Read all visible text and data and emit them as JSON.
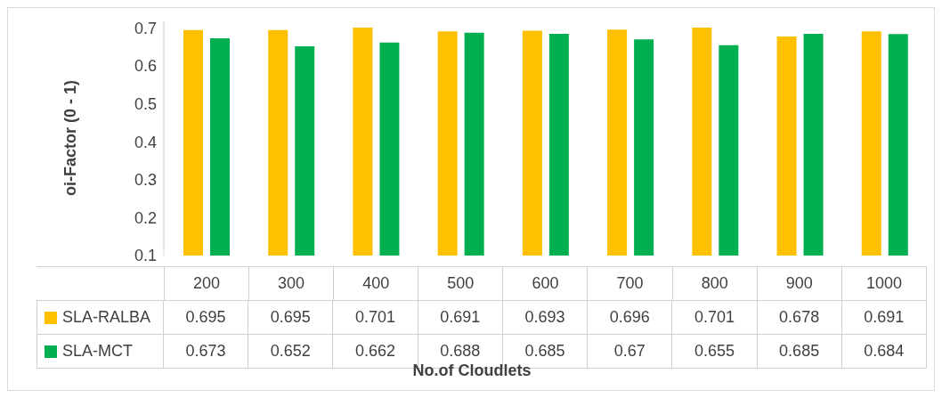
{
  "chart_data": {
    "type": "bar",
    "xlabel": "No.of Cloudlets",
    "ylabel": "oi-Factor (0 - 1)",
    "categories": [
      "200",
      "300",
      "400",
      "500",
      "600",
      "700",
      "800",
      "900",
      "1000"
    ],
    "series": [
      {
        "name": "SLA-RALBA",
        "color": "#ffc000",
        "values": [
          0.695,
          0.695,
          0.701,
          0.691,
          0.693,
          0.696,
          0.701,
          0.678,
          0.691
        ]
      },
      {
        "name": "SLA-MCT",
        "color": "#00b050",
        "values": [
          0.673,
          0.652,
          0.662,
          0.688,
          0.685,
          0.67,
          0.655,
          0.685,
          0.684
        ]
      }
    ],
    "ylim": [
      0.1,
      0.72
    ],
    "yticks": [
      0.1,
      0.2,
      0.3,
      0.4,
      0.5,
      0.6,
      0.7
    ],
    "grid": false,
    "legend": "bottom",
    "data_labels": true
  }
}
